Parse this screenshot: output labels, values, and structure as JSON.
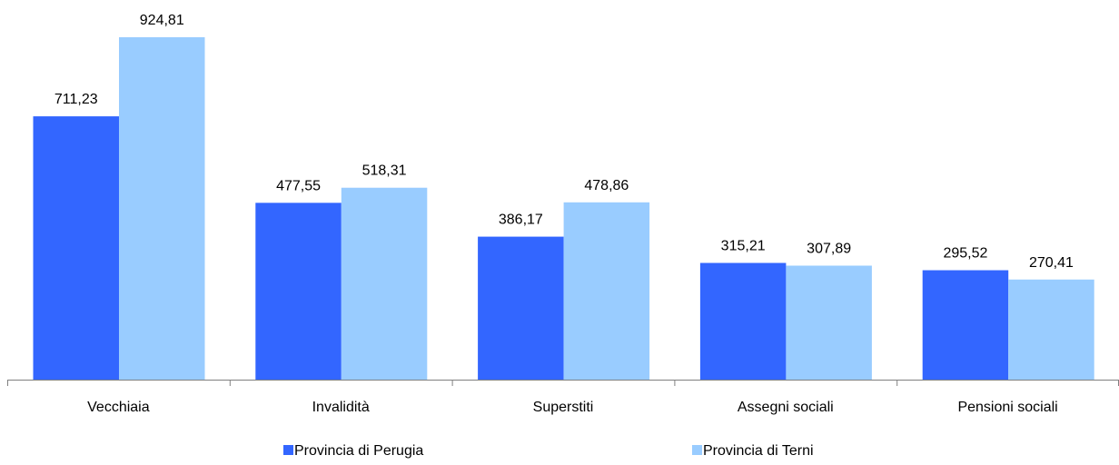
{
  "chart_data": {
    "type": "bar",
    "categories": [
      "Vecchiaia",
      "Invalidità",
      "Superstiti",
      "Assegni sociali",
      "Pensioni sociali"
    ],
    "series": [
      {
        "name": "Provincia di Perugia",
        "color": "#3366FF",
        "values": [
          711.23,
          477.55,
          386.17,
          315.21,
          295.52
        ],
        "labels": [
          "711,23",
          "477,55",
          "386,17",
          "315,21",
          "295,52"
        ]
      },
      {
        "name": "Provincia di Terni",
        "color": "#99CCFF",
        "values": [
          924.81,
          518.31,
          478.86,
          307.89,
          270.41
        ],
        "labels": [
          "924,81",
          "518,31",
          "478,86",
          "307,89",
          "270,41"
        ]
      }
    ],
    "ylim": [
      0,
      1000
    ],
    "grid": false,
    "legend_position": "bottom"
  }
}
